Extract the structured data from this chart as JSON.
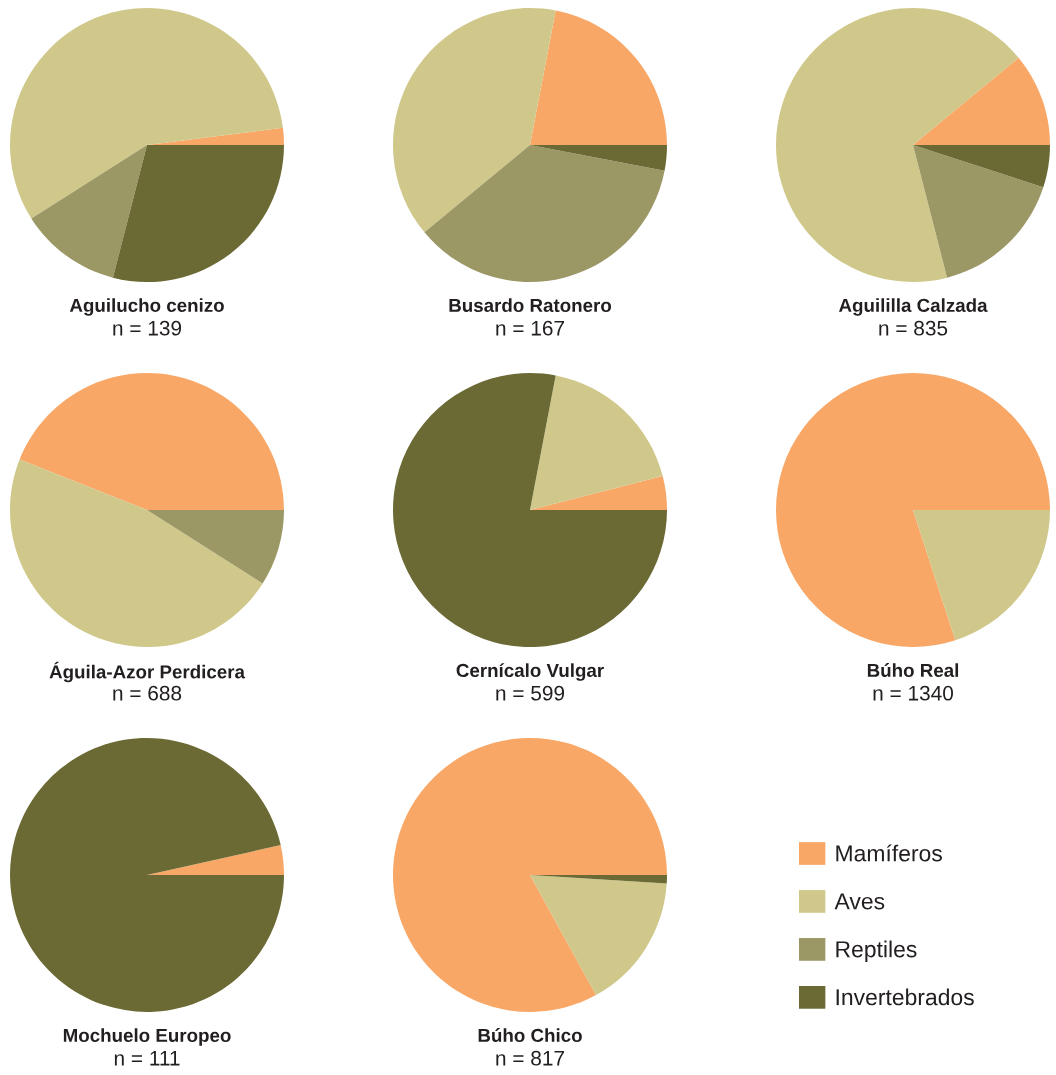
{
  "chart_data": {
    "type": "pie",
    "categories": [
      "Mamíferos",
      "Aves",
      "Reptiles",
      "Invertebrados"
    ],
    "colors": [
      "#f8a766",
      "#d0c88a",
      "#9b9866",
      "#6b6a34"
    ],
    "legend": "bottom right",
    "series": [
      {
        "name": "Aguilucho cenizo",
        "values": [
          2,
          57,
          12,
          29
        ]
      },
      {
        "name": "Busardo Ratonero",
        "values": [
          22,
          39,
          36,
          3
        ]
      },
      {
        "name": "Aguililla Calzada",
        "values": [
          11,
          68,
          16,
          5
        ]
      },
      {
        "name": "Águila-Azor Perdicera",
        "values": [
          44,
          47,
          9,
          0
        ]
      },
      {
        "name": "Cernícalo Vulgar",
        "values": [
          4,
          18,
          0,
          78
        ]
      },
      {
        "name": "Búho Real",
        "values": [
          80,
          20,
          0,
          0
        ]
      },
      {
        "name": "Mochuelo Europeo",
        "values": [
          3.5,
          0,
          0,
          96.5
        ]
      },
      {
        "name": "Búho Chico",
        "values": [
          83,
          16,
          0,
          1
        ]
      }
    ],
    "annotations": [
      "n = 139",
      "n = 167",
      "n = 835",
      "n = 688",
      "n = 599",
      "n = 1340",
      "n = 111",
      "n = 817"
    ]
  }
}
